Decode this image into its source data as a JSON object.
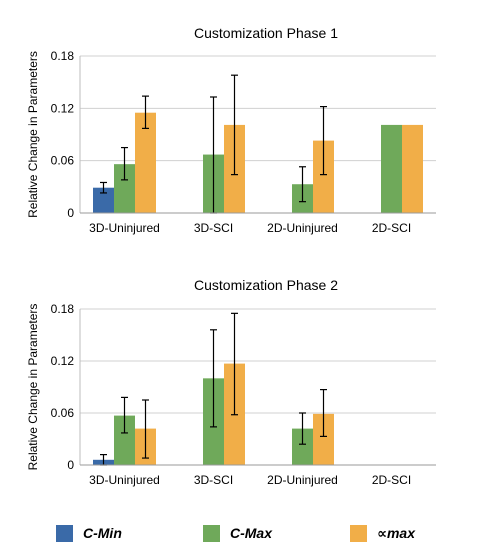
{
  "chart_data": [
    {
      "type": "bar",
      "title": "Customization Phase 1",
      "ylabel": "Relative Change in Parameters",
      "xlabel": "",
      "categories": [
        "3D-Uninjured",
        "3D-SCI",
        "2D-Uninjured",
        "2D-SCI"
      ],
      "ylim": [
        0,
        0.18
      ],
      "yticks": [
        "0",
        "0.06",
        "0.12",
        "0.18"
      ],
      "grid": true,
      "series": [
        {
          "name": "C-Min",
          "values": [
            0.029,
            null,
            null,
            null
          ],
          "err_low": [
            0.023,
            null,
            null,
            null
          ],
          "err_high": [
            0.035,
            null,
            null,
            null
          ]
        },
        {
          "name": "C-Max",
          "values": [
            0.056,
            0.067,
            0.033,
            0.101
          ],
          "err_low": [
            0.038,
            0.0,
            0.013,
            null
          ],
          "err_high": [
            0.075,
            0.133,
            0.053,
            null
          ]
        },
        {
          "name": "∝max",
          "values": [
            0.115,
            0.101,
            0.083,
            0.101
          ],
          "err_low": [
            0.097,
            0.044,
            0.044,
            null
          ],
          "err_high": [
            0.134,
            0.158,
            0.122,
            null
          ]
        }
      ]
    },
    {
      "type": "bar",
      "title": "Customization Phase 2",
      "ylabel": "Relative Change in Parameters",
      "xlabel": "",
      "categories": [
        "3D-Uninjured",
        "3D-SCI",
        "2D-Uninjured",
        "2D-SCI"
      ],
      "ylim": [
        0,
        0.18
      ],
      "yticks": [
        "0",
        "0.06",
        "0.12",
        "0.18"
      ],
      "grid": true,
      "series": [
        {
          "name": "C-Min",
          "values": [
            0.006,
            null,
            null,
            null
          ],
          "err_low": [
            0.0,
            null,
            null,
            null
          ],
          "err_high": [
            0.012,
            null,
            null,
            null
          ]
        },
        {
          "name": "C-Max",
          "values": [
            0.057,
            0.1,
            0.042,
            null
          ],
          "err_low": [
            0.037,
            0.044,
            0.024,
            null
          ],
          "err_high": [
            0.078,
            0.156,
            0.06,
            null
          ]
        },
        {
          "name": "∝max",
          "values": [
            0.042,
            0.117,
            0.059,
            null
          ],
          "err_low": [
            0.008,
            0.058,
            0.033,
            null
          ],
          "err_high": [
            0.075,
            0.175,
            0.087,
            null
          ]
        }
      ]
    }
  ],
  "legend": {
    "placement": "bottom",
    "items": [
      {
        "label": "C-Min",
        "color": "#3a6aa8"
      },
      {
        "label": "C-Max",
        "color": "#6fa95a"
      },
      {
        "label": "∝max",
        "color": "#f1ae48"
      }
    ]
  }
}
